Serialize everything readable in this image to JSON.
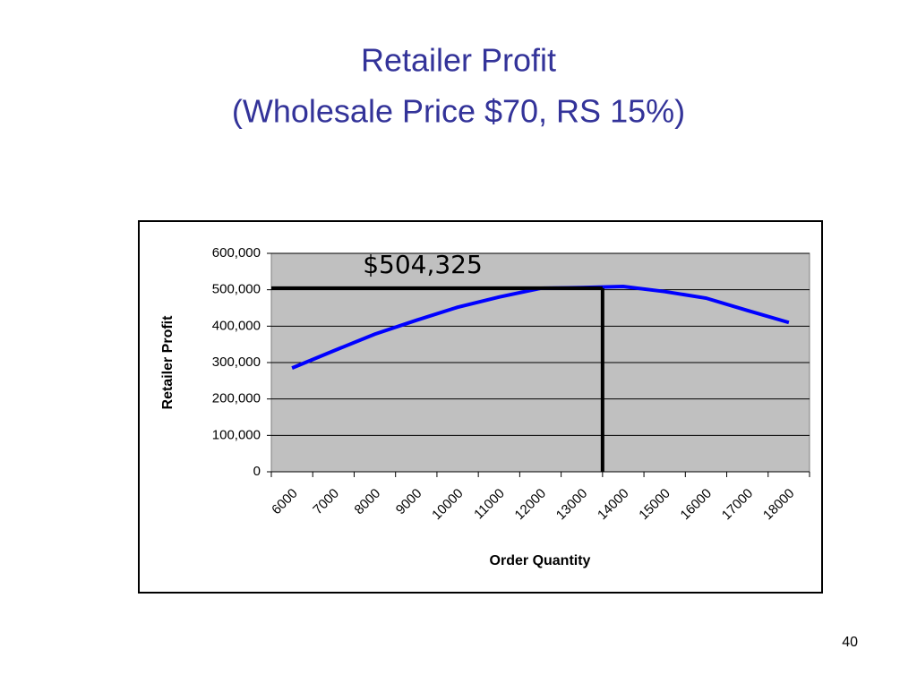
{
  "chart_data": {
    "type": "line",
    "title": "Retailer Profit",
    "subtitle": "(Wholesale Price $70, RS 15%)",
    "x_label": "Order Quantity",
    "y_label": "Retailer Profit",
    "categories": [
      "6000",
      "7000",
      "8000",
      "9000",
      "10000",
      "11000",
      "12000",
      "13000",
      "14000",
      "15000",
      "16000",
      "17000",
      "18000"
    ],
    "series": [
      {
        "name": "Retailer Profit",
        "color": "#0000ff",
        "values": [
          285000,
          332000,
          378000,
          416000,
          452000,
          480000,
          504000,
          506000,
          509000,
          495000,
          477000,
          443000,
          410000
        ]
      }
    ],
    "ylim": [
      0,
      600000
    ],
    "yticks": [
      0,
      {
        "value": 100000,
        "label": "100,000"
      },
      {
        "value": 200000,
        "label": "200,000"
      },
      {
        "value": 300000,
        "label": "300,000"
      },
      {
        "value": 400000,
        "label": "400,000"
      },
      {
        "value": 500000,
        "label": "500,000"
      },
      {
        "value": 600000,
        "label": "600,000"
      }
    ],
    "grid": true,
    "reference": {
      "value": 504325,
      "label": "$504,325",
      "category": "14000"
    }
  },
  "page_number": "40"
}
